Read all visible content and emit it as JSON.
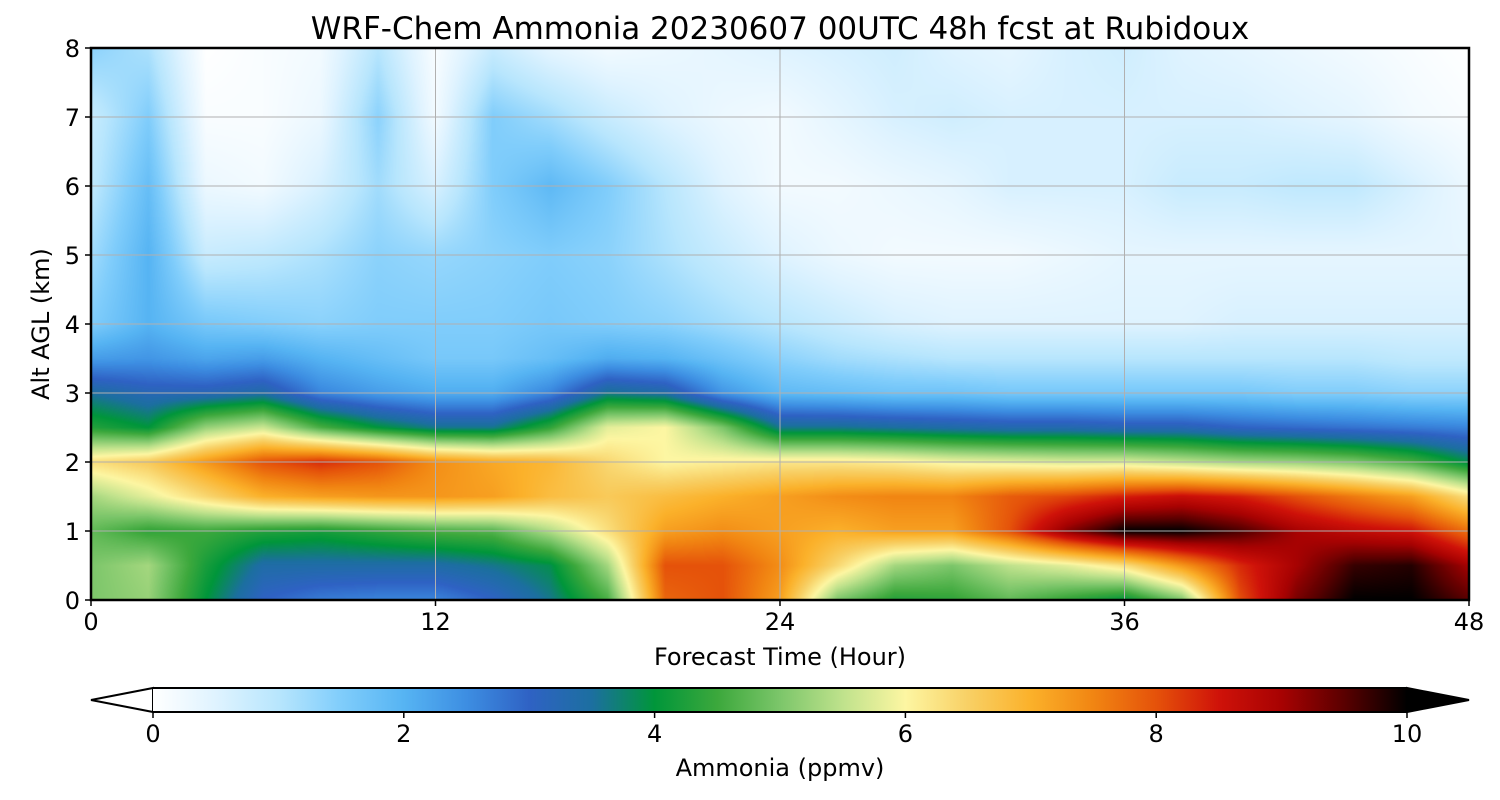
{
  "chart_data": {
    "type": "heatmap",
    "title": "WRF-Chem Ammonia  20230607 00UTC 48h fcst at Rubidoux",
    "xlabel": "Forecast Time (Hour)",
    "ylabel": "Alt AGL (km)",
    "xlim": [
      0,
      48
    ],
    "ylim": [
      0,
      8
    ],
    "x_ticks": [
      0,
      12,
      24,
      36,
      48
    ],
    "y_ticks": [
      0,
      1,
      2,
      3,
      4,
      5,
      6,
      7,
      8
    ],
    "grid": true,
    "colorbar": {
      "label": "Ammonia  (ppmv)",
      "range": [
        0,
        10
      ],
      "ticks": [
        0,
        2,
        4,
        6,
        8,
        10
      ],
      "extend": "both",
      "orientation": "horizontal",
      "placement": "bottom"
    },
    "x": [
      0,
      2,
      4,
      6,
      8,
      10,
      12,
      14,
      16,
      18,
      20,
      22,
      24,
      26,
      28,
      30,
      32,
      34,
      36,
      38,
      40,
      42,
      44,
      46,
      48
    ],
    "y": [
      0,
      0.5,
      1,
      1.5,
      2,
      2.5,
      3,
      3.5,
      4,
      5,
      6,
      7,
      8
    ],
    "z": [
      [
        5.0,
        5.2,
        4.0,
        3.0,
        2.7,
        2.6,
        2.6,
        3.0,
        3.6,
        4.6,
        7.8,
        8.0,
        7.2,
        5.0,
        4.3,
        4.4,
        4.8,
        4.4,
        4.0,
        5.0,
        8.0,
        9.3,
        10.0,
        10.0,
        9.5
      ],
      [
        5.0,
        5.3,
        4.2,
        3.4,
        3.4,
        3.4,
        3.4,
        3.6,
        3.9,
        5.3,
        8.0,
        8.0,
        7.4,
        6.4,
        5.3,
        5.0,
        5.5,
        5.8,
        6.3,
        7.3,
        8.3,
        9.0,
        9.7,
        9.8,
        9.0
      ],
      [
        4.8,
        4.4,
        4.5,
        4.3,
        4.2,
        4.4,
        4.6,
        4.7,
        5.4,
        6.3,
        7.2,
        7.4,
        7.2,
        7.0,
        7.2,
        7.2,
        8.0,
        9.2,
        10.0,
        10.0,
        9.6,
        9.0,
        8.7,
        8.5,
        7.7
      ],
      [
        5.3,
        5.8,
        6.4,
        7.0,
        7.2,
        7.3,
        7.3,
        7.2,
        6.8,
        6.6,
        6.8,
        7.0,
        7.2,
        7.4,
        7.5,
        7.5,
        7.9,
        8.1,
        8.4,
        8.6,
        8.4,
        8.0,
        7.6,
        7.2,
        6.3
      ],
      [
        6.3,
        6.6,
        7.3,
        8.0,
        8.3,
        8.0,
        7.4,
        7.1,
        6.9,
        6.4,
        6.0,
        6.1,
        6.2,
        6.2,
        6.1,
        5.9,
        5.8,
        5.7,
        5.7,
        5.5,
        5.3,
        5.2,
        5.0,
        4.6,
        3.9
      ],
      [
        4.3,
        4.0,
        5.2,
        5.6,
        4.6,
        4.0,
        3.6,
        3.6,
        4.4,
        5.8,
        6.0,
        5.0,
        3.6,
        3.6,
        3.5,
        3.4,
        3.3,
        3.3,
        3.2,
        3.2,
        3.0,
        2.9,
        2.8,
        2.7,
        2.6
      ],
      [
        3.5,
        3.2,
        3.2,
        3.4,
        2.6,
        2.3,
        2.1,
        2.1,
        2.6,
        3.6,
        3.4,
        2.4,
        1.9,
        1.8,
        1.7,
        1.7,
        1.6,
        1.6,
        1.6,
        1.6,
        1.6,
        1.5,
        1.5,
        1.4,
        1.4
      ],
      [
        2.3,
        2.4,
        2.2,
        2.3,
        2.0,
        1.8,
        1.6,
        1.6,
        1.8,
        2.1,
        2.0,
        1.7,
        1.4,
        1.2,
        1.1,
        1.0,
        1.0,
        1.0,
        1.0,
        1.0,
        1.0,
        1.0,
        1.0,
        0.9,
        0.9
      ],
      [
        1.5,
        2.0,
        1.6,
        1.5,
        1.4,
        1.5,
        1.5,
        1.5,
        1.6,
        1.5,
        1.4,
        1.2,
        1.0,
        0.8,
        0.6,
        0.5,
        0.5,
        0.5,
        0.5,
        0.5,
        0.6,
        0.6,
        0.6,
        0.6,
        0.6
      ],
      [
        1.2,
        2.0,
        0.8,
        0.9,
        1.1,
        1.4,
        1.3,
        1.4,
        1.5,
        1.4,
        1.1,
        0.8,
        0.5,
        0.3,
        0.2,
        0.2,
        0.2,
        0.3,
        0.4,
        0.4,
        0.4,
        0.4,
        0.4,
        0.4,
        0.4
      ],
      [
        0.9,
        1.8,
        0.3,
        0.2,
        0.6,
        1.2,
        0.6,
        1.5,
        1.9,
        1.5,
        1.0,
        0.5,
        0.2,
        0.2,
        0.3,
        0.4,
        0.6,
        0.6,
        0.6,
        0.8,
        0.8,
        0.9,
        0.9,
        0.6,
        0.3
      ],
      [
        0.8,
        1.5,
        0.1,
        0.1,
        0.3,
        1.4,
        0.2,
        1.5,
        1.2,
        0.8,
        0.5,
        0.3,
        0.2,
        0.4,
        0.6,
        0.7,
        0.6,
        0.6,
        0.6,
        0.6,
        0.6,
        0.5,
        0.4,
        0.2,
        0.1
      ],
      [
        1.4,
        1.1,
        0.0,
        0.1,
        0.2,
        1.0,
        0.1,
        0.8,
        0.4,
        0.2,
        0.3,
        0.4,
        0.5,
        0.6,
        0.7,
        0.5,
        0.4,
        0.6,
        0.7,
        0.5,
        0.4,
        0.3,
        0.2,
        0.1,
        0.0
      ]
    ],
    "colormap": [
      "#ffffff",
      "#dff3ff",
      "#b8e6fd",
      "#80cdfb",
      "#56b4f3",
      "#3d8ee2",
      "#2f62c4",
      "#1c6fa0",
      "#00963a",
      "#3ca83c",
      "#7cc66a",
      "#bfe28c",
      "#fdf6a2",
      "#f8d065",
      "#fbb12a",
      "#f18512",
      "#e5520a",
      "#cf1209",
      "#a70202",
      "#5a0000",
      "#000000"
    ],
    "under_color": "#ffffff",
    "over_color": "#000000"
  }
}
